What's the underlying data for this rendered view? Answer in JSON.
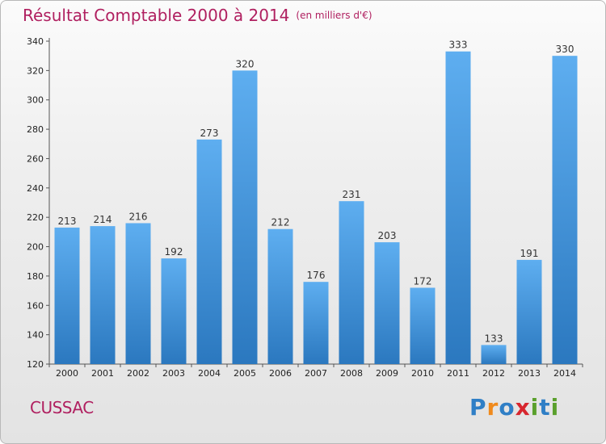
{
  "chart_data": {
    "type": "bar",
    "title": "Résultat Comptable 2000 à 2014",
    "subtitle": "(en milliers d'€)",
    "categories": [
      "2000",
      "2001",
      "2002",
      "2003",
      "2004",
      "2005",
      "2006",
      "2007",
      "2008",
      "2009",
      "2010",
      "2011",
      "2012",
      "2013",
      "2014"
    ],
    "values": [
      213,
      214,
      216,
      192,
      273,
      320,
      212,
      176,
      231,
      203,
      172,
      333,
      133,
      191,
      330
    ],
    "yticks": [
      120,
      140,
      160,
      180,
      200,
      220,
      240,
      260,
      280,
      300,
      320,
      340
    ],
    "ylim": [
      120,
      340
    ],
    "xlabel": "",
    "ylabel": "",
    "grid": false,
    "bar_color": "#3d8fd6"
  },
  "commune": "CUSSAC",
  "logo": {
    "text": "Proxiti",
    "colors": [
      "#2f7fc6",
      "#f08a1c",
      "#2f7fc6",
      "#d7262e",
      "#5aa02c",
      "#2f7fc6",
      "#5aa02c"
    ]
  }
}
